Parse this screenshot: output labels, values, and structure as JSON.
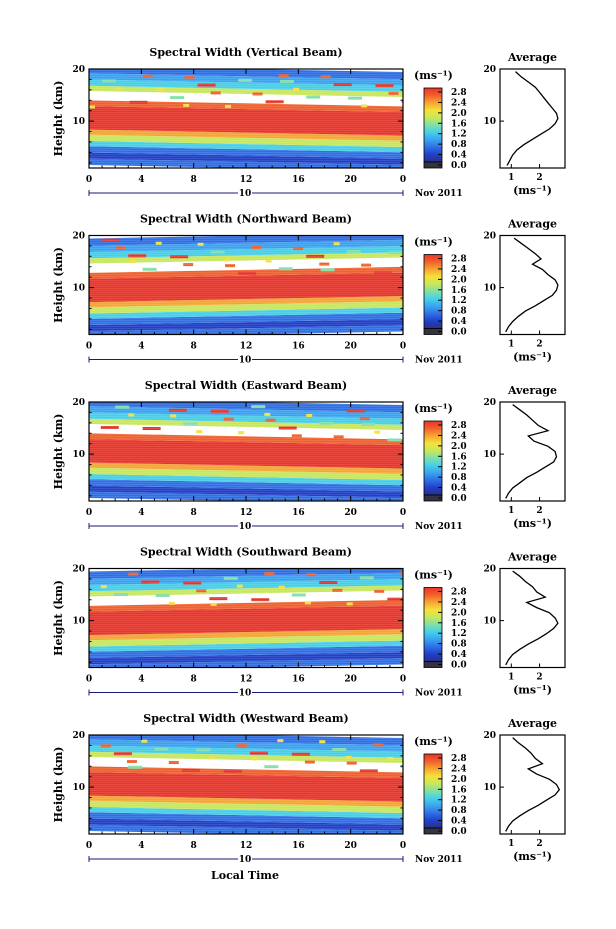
{
  "xlabel": "Local Time",
  "date_label": "Nov 2011",
  "day_label": "10",
  "colorbar_unit": "(ms⁻¹)",
  "colorbar_ticks": [
    "0.0",
    "0.4",
    "0.8",
    "1.2",
    "1.6",
    "2.0",
    "2.4",
    "2.8"
  ],
  "colorscale": [
    "#2b2f8a",
    "#2040c8",
    "#2f6fe6",
    "#3aa3f0",
    "#45d0e8",
    "#7fe0a8",
    "#c8e85a",
    "#f6e03a",
    "#f7a531",
    "#f2602c",
    "#e8352a"
  ],
  "chart_data": [
    {
      "type": "heatmap",
      "title": "Spectral Width (Vertical Beam)",
      "ylabel": "Height (km)",
      "x_ticks": [
        "0",
        "4",
        "8",
        "12",
        "16",
        "20",
        "0"
      ],
      "xlim": [
        0,
        24
      ],
      "y_ticks": [
        "20",
        "10"
      ],
      "ylim": [
        1,
        20
      ],
      "profile": {
        "title": "Average",
        "xlabel": "(ms⁻¹)",
        "x_ticks": [
          "1",
          "2"
        ],
        "xlim": [
          0.6,
          2.9
        ],
        "y_ticks": [
          "20",
          "10"
        ],
        "ylim": [
          1,
          20
        ],
        "heights": [
          1.5,
          2.5,
          3.5,
          4.5,
          5.5,
          6.5,
          7.5,
          8.5,
          9.5,
          10.5,
          11.5,
          12.5,
          13.5,
          14.5,
          15.5,
          16.5,
          17.5,
          18.5,
          19.5
        ],
        "values": [
          0.85,
          0.95,
          1.05,
          1.2,
          1.45,
          1.75,
          2.05,
          2.35,
          2.55,
          2.65,
          2.6,
          2.45,
          2.3,
          2.15,
          2.0,
          1.85,
          1.6,
          1.35,
          1.15
        ]
      }
    },
    {
      "type": "heatmap",
      "title": "Spectral Width (Northward Beam)",
      "ylabel": "Height (km)",
      "x_ticks": [
        "0",
        "4",
        "8",
        "12",
        "16",
        "20",
        "0"
      ],
      "xlim": [
        0,
        24
      ],
      "y_ticks": [
        "20",
        "10"
      ],
      "ylim": [
        1,
        20
      ],
      "profile": {
        "title": "Average",
        "xlabel": "(ms⁻¹)",
        "x_ticks": [
          "1",
          "2"
        ],
        "xlim": [
          0.6,
          2.9
        ],
        "y_ticks": [
          "20",
          "10"
        ],
        "ylim": [
          1,
          20
        ],
        "heights": [
          1.5,
          2.5,
          3.5,
          4.5,
          5.5,
          6.5,
          7.5,
          8.5,
          9.5,
          10.5,
          11.5,
          12.5,
          13.5,
          14.5,
          15.5,
          16.5,
          17.5,
          18.5,
          19.5
        ],
        "values": [
          0.8,
          0.9,
          1.05,
          1.25,
          1.5,
          1.85,
          2.15,
          2.45,
          2.6,
          2.65,
          2.55,
          2.3,
          2.1,
          1.75,
          2.05,
          1.85,
          1.6,
          1.35,
          1.1
        ]
      }
    },
    {
      "type": "heatmap",
      "title": "Spectral Width (Eastward Beam)",
      "ylabel": "Height (km)",
      "x_ticks": [
        "0",
        "4",
        "8",
        "12",
        "16",
        "20",
        "0"
      ],
      "xlim": [
        0,
        24
      ],
      "y_ticks": [
        "20",
        "10"
      ],
      "ylim": [
        1,
        20
      ],
      "profile": {
        "title": "Average",
        "xlabel": "(ms⁻¹)",
        "x_ticks": [
          "1",
          "2"
        ],
        "xlim": [
          0.6,
          2.9
        ],
        "y_ticks": [
          "20",
          "10"
        ],
        "ylim": [
          1,
          20
        ],
        "heights": [
          1.5,
          2.5,
          3.5,
          4.5,
          5.5,
          6.5,
          7.5,
          8.5,
          9.5,
          10.5,
          11.5,
          12.5,
          13.5,
          14.5,
          15.5,
          16.5,
          17.5,
          18.5,
          19.5
        ],
        "values": [
          0.8,
          0.9,
          1.05,
          1.3,
          1.55,
          1.9,
          2.2,
          2.5,
          2.6,
          2.55,
          2.3,
          1.8,
          1.6,
          2.3,
          1.95,
          1.75,
          1.55,
          1.3,
          1.05
        ]
      }
    },
    {
      "type": "heatmap",
      "title": "Spectral Width (Southward Beam)",
      "ylabel": "Height (km)",
      "x_ticks": [
        "0",
        "4",
        "8",
        "12",
        "16",
        "20",
        "0"
      ],
      "xlim": [
        0,
        24
      ],
      "y_ticks": [
        "20",
        "10"
      ],
      "ylim": [
        1,
        20
      ],
      "profile": {
        "title": "Average",
        "xlabel": "(ms⁻¹)",
        "x_ticks": [
          "1",
          "2"
        ],
        "xlim": [
          0.6,
          2.9
        ],
        "y_ticks": [
          "20",
          "10"
        ],
        "ylim": [
          1,
          20
        ],
        "heights": [
          1.5,
          2.5,
          3.5,
          4.5,
          5.5,
          6.5,
          7.5,
          8.5,
          9.5,
          10.5,
          11.5,
          12.5,
          13.5,
          14.5,
          15.5,
          16.5,
          17.5,
          18.5,
          19.5
        ],
        "values": [
          0.8,
          0.9,
          1.05,
          1.3,
          1.6,
          1.95,
          2.25,
          2.5,
          2.65,
          2.55,
          2.35,
          1.9,
          1.55,
          2.2,
          1.9,
          1.75,
          1.5,
          1.3,
          1.05
        ]
      }
    },
    {
      "type": "heatmap",
      "title": "Spectral Width (Westward Beam)",
      "ylabel": "Height (km)",
      "x_ticks": [
        "0",
        "4",
        "8",
        "12",
        "16",
        "20",
        "0"
      ],
      "xlim": [
        0,
        24
      ],
      "y_ticks": [
        "20",
        "10"
      ],
      "ylim": [
        1,
        20
      ],
      "profile": {
        "title": "Average",
        "xlabel": "(ms⁻¹)",
        "x_ticks": [
          "1",
          "2"
        ],
        "xlim": [
          0.6,
          2.9
        ],
        "y_ticks": [
          "20",
          "10"
        ],
        "ylim": [
          1,
          20
        ],
        "heights": [
          1.5,
          2.5,
          3.5,
          4.5,
          5.5,
          6.5,
          7.5,
          8.5,
          9.5,
          10.5,
          11.5,
          12.5,
          13.5,
          14.5,
          15.5,
          16.5,
          17.5,
          18.5,
          19.5
        ],
        "values": [
          0.8,
          0.9,
          1.05,
          1.3,
          1.6,
          1.95,
          2.25,
          2.55,
          2.7,
          2.6,
          2.35,
          1.9,
          1.6,
          2.1,
          1.85,
          1.7,
          1.5,
          1.25,
          1.05
        ]
      }
    }
  ]
}
